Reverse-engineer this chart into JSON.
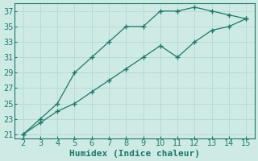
{
  "xlabel": "Humidex (Indice chaleur)",
  "bg_color": "#ceeae4",
  "line_color": "#1a7a6a",
  "grid_color": "#b8d8d0",
  "line1_x": [
    2,
    3,
    4,
    5,
    6,
    7,
    8,
    9,
    10,
    11,
    12,
    13,
    14,
    15
  ],
  "line1_y": [
    21,
    23,
    25,
    29,
    31,
    33,
    35,
    35,
    37,
    37,
    37.5,
    37,
    36.5,
    36
  ],
  "line2_x": [
    2,
    3,
    4,
    5,
    6,
    7,
    8,
    9,
    10,
    11,
    12,
    13,
    14,
    15
  ],
  "line2_y": [
    21,
    22.5,
    24,
    25,
    26.5,
    28,
    29.5,
    31,
    32.5,
    31,
    33,
    34.5,
    35,
    36
  ],
  "xlim": [
    1.5,
    15.5
  ],
  "ylim": [
    20.5,
    38
  ],
  "xticks": [
    2,
    3,
    4,
    5,
    6,
    7,
    8,
    9,
    10,
    11,
    12,
    13,
    14,
    15
  ],
  "yticks": [
    21,
    23,
    25,
    27,
    29,
    31,
    33,
    35,
    37
  ],
  "markersize": 3,
  "linewidth": 0.9,
  "xlabel_fontsize": 8,
  "tick_fontsize": 7
}
